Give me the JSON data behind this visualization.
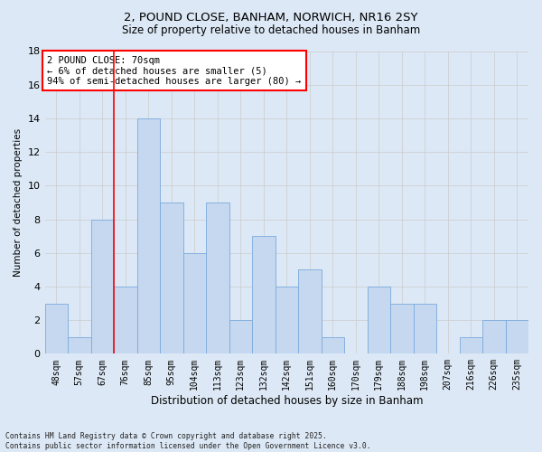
{
  "title1": "2, POUND CLOSE, BANHAM, NORWICH, NR16 2SY",
  "title2": "Size of property relative to detached houses in Banham",
  "xlabel": "Distribution of detached houses by size in Banham",
  "ylabel": "Number of detached properties",
  "categories": [
    "48sqm",
    "57sqm",
    "67sqm",
    "76sqm",
    "85sqm",
    "95sqm",
    "104sqm",
    "113sqm",
    "123sqm",
    "132sqm",
    "142sqm",
    "151sqm",
    "160sqm",
    "170sqm",
    "179sqm",
    "188sqm",
    "198sqm",
    "207sqm",
    "216sqm",
    "226sqm",
    "235sqm"
  ],
  "values": [
    3,
    1,
    8,
    4,
    14,
    9,
    6,
    9,
    2,
    7,
    4,
    5,
    1,
    0,
    4,
    3,
    3,
    0,
    1,
    2,
    2
  ],
  "bar_color": "#c5d8f0",
  "bar_edge_color": "#7aaadd",
  "grid_color": "#cccccc",
  "vline_x_index": 2,
  "vline_color": "red",
  "annotation_text": "2 POUND CLOSE: 70sqm\n← 6% of detached houses are smaller (5)\n94% of semi-detached houses are larger (80) →",
  "annotation_box_color": "white",
  "annotation_box_edge": "red",
  "ylim": [
    0,
    18
  ],
  "yticks": [
    0,
    2,
    4,
    6,
    8,
    10,
    12,
    14,
    16,
    18
  ],
  "footnote": "Contains HM Land Registry data © Crown copyright and database right 2025.\nContains public sector information licensed under the Open Government Licence v3.0.",
  "bg_color": "#dce8f5"
}
